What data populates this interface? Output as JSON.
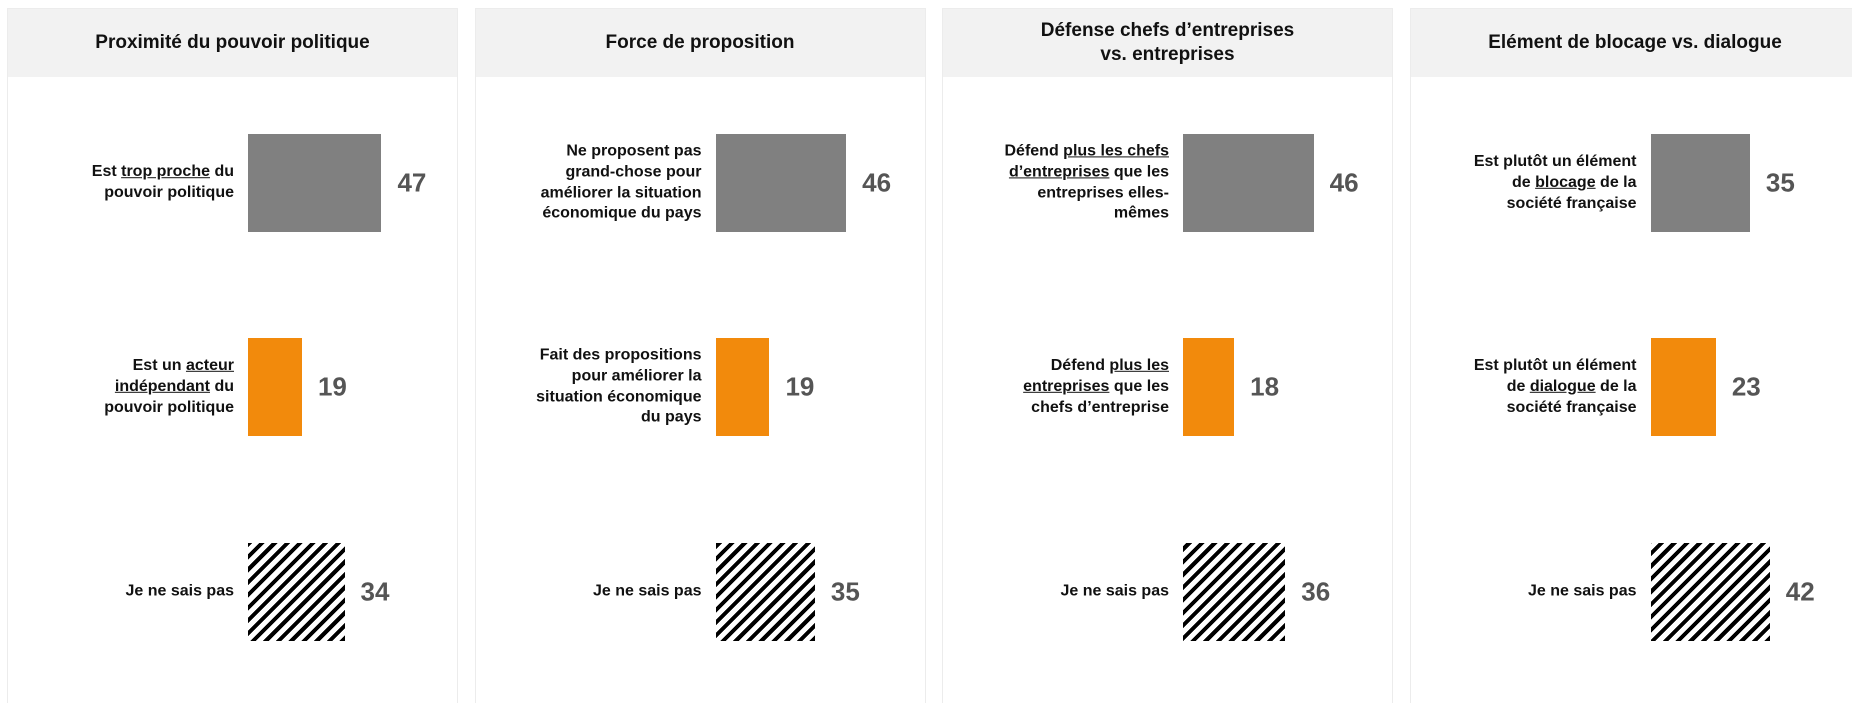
{
  "chart_data": [
    {
      "type": "hbar",
      "title": "Proximité du pouvoir politique",
      "categories": [
        "Est trop proche du pouvoir politique",
        "Est un acteur indépendant du pouvoir politique",
        "Je ne sais pas"
      ],
      "underline": [
        "trop proche",
        "acteur indépendant",
        null
      ],
      "values": [
        47,
        19,
        34
      ],
      "fills": [
        "#808080",
        "#f28a0c",
        "diagonal-hatch"
      ]
    },
    {
      "type": "hbar",
      "title": "Force de proposition",
      "categories": [
        "Ne proposent pas grand-chose pour améliorer la situation économique du pays",
        "Fait des propositions pour améliorer la situation économique du pays",
        "Je ne sais pas"
      ],
      "underline": [
        null,
        null,
        null
      ],
      "values": [
        46,
        19,
        35
      ],
      "fills": [
        "#808080",
        "#f28a0c",
        "diagonal-hatch"
      ]
    },
    {
      "type": "hbar",
      "title": "Défense chefs d’entreprises\nvs. entreprises",
      "categories": [
        "Défend plus les chefs d’entreprises que les entreprises elles-mêmes",
        "Défend plus les entreprises que les chefs d’entreprise",
        "Je ne sais pas"
      ],
      "underline": [
        "plus les chefs d’entreprises",
        "plus les entreprises",
        null
      ],
      "values": [
        46,
        18,
        36
      ],
      "fills": [
        "#808080",
        "#f28a0c",
        "diagonal-hatch"
      ]
    },
    {
      "type": "hbar",
      "title": "Elément de blocage vs. dialogue",
      "categories": [
        "Est plutôt un élément de blocage de la société française",
        "Est plutôt un élément de dialogue de la société française",
        "Je ne sais pas"
      ],
      "underline": [
        "blocage",
        "dialogue",
        null
      ],
      "values": [
        35,
        23,
        42
      ],
      "fills": [
        "#808080",
        "#f28a0c",
        "diagonal-hatch"
      ]
    }
  ]
}
